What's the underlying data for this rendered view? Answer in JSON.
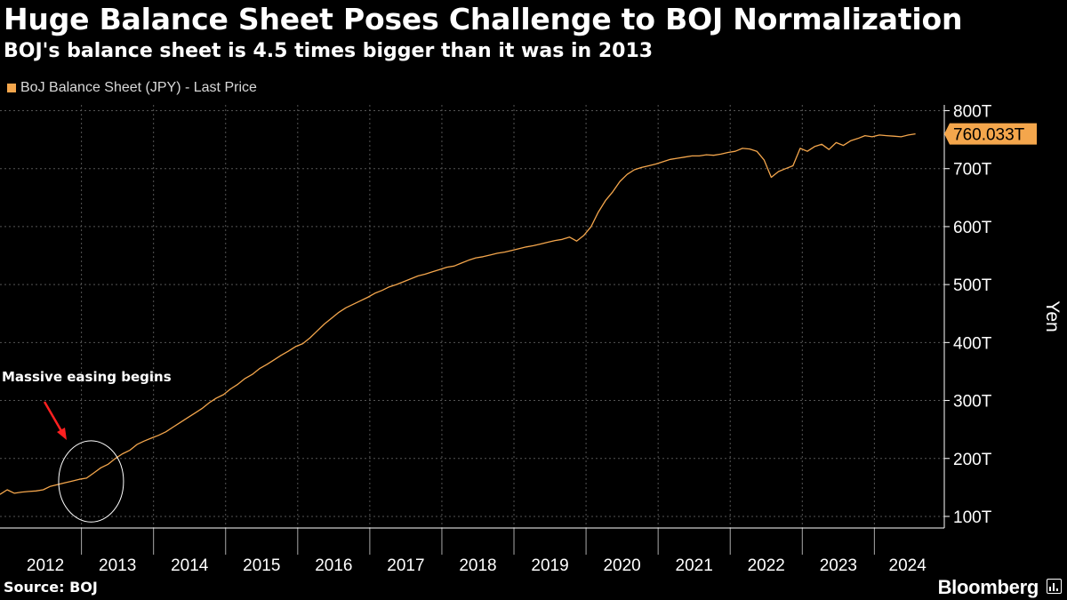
{
  "header": {
    "title": "Huge Balance Sheet Poses Challenge to BOJ Normalization",
    "subtitle": "BOJ's balance sheet is 4.5 times bigger than it was in 2013"
  },
  "footer": {
    "source": "Source: BOJ",
    "brand": "Bloomberg"
  },
  "colors": {
    "background": "#000000",
    "series": "#f4a64c",
    "annotation_arrow": "#ff2020",
    "grid": "#555555"
  },
  "chart_data": {
    "type": "line",
    "title": "Huge Balance Sheet Poses Challenge to BOJ Normalization",
    "subtitle": "BOJ's balance sheet is 4.5 times bigger than it was in 2013",
    "xlabel": "",
    "ylabel": "Yen",
    "legend": "top-left",
    "grid": true,
    "xlim": [
      2011.85,
      2024.95
    ],
    "ylim": [
      80,
      810
    ],
    "x_ticks": [
      2012,
      2013,
      2014,
      2015,
      2016,
      2017,
      2018,
      2019,
      2020,
      2021,
      2022,
      2023,
      2024
    ],
    "x_tick_labels": [
      "2012",
      "2013",
      "2014",
      "2015",
      "2016",
      "2017",
      "2018",
      "2019",
      "2020",
      "2021",
      "2022",
      "2023",
      "2024"
    ],
    "y_ticks": [
      100,
      200,
      300,
      400,
      500,
      600,
      700,
      800
    ],
    "y_tick_labels": [
      "100T",
      "200T",
      "300T",
      "400T",
      "500T",
      "600T",
      "700T",
      "800T"
    ],
    "last_value_label": "760.033T",
    "annotation": {
      "text": "Massive easing begins",
      "target_x": 2013.2,
      "target_y": 165,
      "circle_radius_x": 0.45,
      "circle_radius_y": 70
    },
    "series": [
      {
        "name": "BoJ Balance Sheet (JPY) - Last Price",
        "x": [
          2011.85,
          2011.95,
          2012.05,
          2012.15,
          2012.25,
          2012.35,
          2012.45,
          2012.55,
          2012.65,
          2012.75,
          2012.85,
          2012.95,
          2013.05,
          2013.15,
          2013.25,
          2013.35,
          2013.45,
          2013.55,
          2013.65,
          2013.75,
          2013.85,
          2013.95,
          2014.05,
          2014.15,
          2014.25,
          2014.35,
          2014.45,
          2014.55,
          2014.65,
          2014.75,
          2014.85,
          2014.95,
          2015.05,
          2015.15,
          2015.25,
          2015.35,
          2015.45,
          2015.55,
          2015.65,
          2015.75,
          2015.85,
          2015.95,
          2016.05,
          2016.15,
          2016.25,
          2016.35,
          2016.45,
          2016.55,
          2016.65,
          2016.75,
          2016.85,
          2016.95,
          2017.05,
          2017.15,
          2017.25,
          2017.35,
          2017.45,
          2017.55,
          2017.65,
          2017.75,
          2017.85,
          2017.95,
          2018.05,
          2018.15,
          2018.25,
          2018.35,
          2018.45,
          2018.55,
          2018.65,
          2018.75,
          2018.85,
          2018.95,
          2019.05,
          2019.15,
          2019.25,
          2019.35,
          2019.45,
          2019.55,
          2019.65,
          2019.75,
          2019.85,
          2019.95,
          2020.05,
          2020.15,
          2020.25,
          2020.35,
          2020.45,
          2020.55,
          2020.65,
          2020.75,
          2020.85,
          2020.95,
          2021.05,
          2021.15,
          2021.25,
          2021.35,
          2021.45,
          2021.55,
          2021.65,
          2021.75,
          2021.85,
          2021.95,
          2022.05,
          2022.15,
          2022.25,
          2022.35,
          2022.45,
          2022.55,
          2022.65,
          2022.75,
          2022.85,
          2022.95,
          2023.05,
          2023.15,
          2023.25,
          2023.35,
          2023.45,
          2023.55,
          2023.65,
          2023.75,
          2023.85,
          2023.95,
          2024.05,
          2024.15,
          2024.25,
          2024.35,
          2024.45,
          2024.55
        ],
        "values": [
          138,
          146,
          140,
          142,
          143,
          144,
          146,
          152,
          155,
          158,
          161,
          164,
          166,
          175,
          184,
          190,
          200,
          208,
          214,
          224,
          230,
          235,
          240,
          246,
          254,
          262,
          270,
          278,
          286,
          296,
          304,
          310,
          320,
          328,
          338,
          345,
          355,
          362,
          370,
          378,
          385,
          393,
          398,
          408,
          420,
          432,
          442,
          452,
          460,
          466,
          472,
          478,
          485,
          490,
          496,
          500,
          505,
          510,
          515,
          518,
          522,
          526,
          530,
          532,
          537,
          542,
          546,
          548,
          551,
          554,
          556,
          559,
          562,
          565,
          567,
          570,
          573,
          576,
          578,
          582,
          575,
          585,
          600,
          625,
          645,
          660,
          678,
          690,
          698,
          702,
          705,
          708,
          712,
          716,
          718,
          720,
          722,
          722,
          724,
          723,
          725,
          728,
          730,
          735,
          734,
          730,
          715,
          685,
          695,
          700,
          705,
          735,
          730,
          738,
          742,
          733,
          745,
          740,
          748,
          752,
          757,
          755,
          758,
          757,
          756,
          755,
          758,
          760.033
        ]
      }
    ]
  }
}
